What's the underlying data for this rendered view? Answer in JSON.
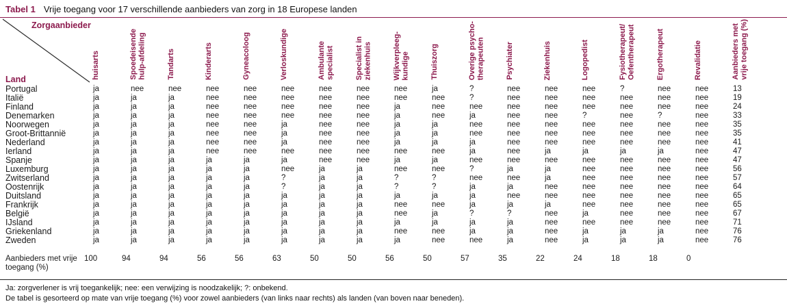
{
  "title": {
    "label": "Tabel 1",
    "text": "Vrije toegang voor 17 verschillende aanbieders van zorg in 18 Europese landen"
  },
  "corner": {
    "top_label": "Zorgaanbieder",
    "bottom_label": "Land"
  },
  "columns": [
    "huisarts",
    "Spoedeisende\nhulp-afdeling",
    "Tandarts",
    "Kinderarts",
    "Gyneacoloog",
    "Verloskundige",
    "Ambulante\nspecialist",
    "Specialist in\nziekenhuis",
    "Wijkverpleeg-\nkundige",
    "Thuiszorg",
    "Overige psycho-\ntherapeuten",
    "Psychiater",
    "Ziekenhuis",
    "Logopedist",
    "Fysiotherapeut/\nOefentherapeut",
    "Ergotherapeut",
    "Revalidatie",
    "Aanbieders met\nvrije toegang (%)"
  ],
  "rows": [
    {
      "country": "Portugal",
      "values": [
        "ja",
        "nee",
        "nee",
        "nee",
        "nee",
        "nee",
        "nee",
        "nee",
        "nee",
        "ja",
        "?",
        "nee",
        "nee",
        "nee",
        "?",
        "nee",
        "nee"
      ],
      "pct": "13"
    },
    {
      "country": "Italië",
      "values": [
        "ja",
        "ja",
        "ja",
        "nee",
        "nee",
        "nee",
        "nee",
        "nee",
        "nee",
        "nee",
        "?",
        "nee",
        "nee",
        "nee",
        "nee",
        "nee",
        "nee"
      ],
      "pct": "19"
    },
    {
      "country": "Finland",
      "values": [
        "ja",
        "ja",
        "ja",
        "nee",
        "nee",
        "nee",
        "nee",
        "nee",
        "ja",
        "nee",
        "nee",
        "nee",
        "nee",
        "nee",
        "nee",
        "nee",
        "nee"
      ],
      "pct": "24"
    },
    {
      "country": "Denemarken",
      "values": [
        "ja",
        "ja",
        "ja",
        "nee",
        "nee",
        "nee",
        "nee",
        "nee",
        "ja",
        "nee",
        "ja",
        "nee",
        "nee",
        "?",
        "nee",
        "?",
        "nee"
      ],
      "pct": "33"
    },
    {
      "country": "Noorwegen",
      "values": [
        "ja",
        "ja",
        "ja",
        "nee",
        "nee",
        "ja",
        "nee",
        "nee",
        "ja",
        "ja",
        "nee",
        "nee",
        "nee",
        "nee",
        "nee",
        "nee",
        "nee"
      ],
      "pct": "35"
    },
    {
      "country": "Groot-Brittannië",
      "values": [
        "ja",
        "ja",
        "ja",
        "nee",
        "nee",
        "ja",
        "nee",
        "nee",
        "ja",
        "ja",
        "nee",
        "nee",
        "nee",
        "nee",
        "nee",
        "nee",
        "nee"
      ],
      "pct": "35"
    },
    {
      "country": "Nederland",
      "values": [
        "ja",
        "ja",
        "ja",
        "nee",
        "nee",
        "ja",
        "nee",
        "nee",
        "ja",
        "ja",
        "ja",
        "nee",
        "nee",
        "nee",
        "nee",
        "nee",
        "nee"
      ],
      "pct": "41"
    },
    {
      "country": "Ierland",
      "values": [
        "ja",
        "ja",
        "ja",
        "nee",
        "nee",
        "nee",
        "nee",
        "nee",
        "nee",
        "nee",
        "ja",
        "nee",
        "ja",
        "ja",
        "ja",
        "ja",
        "nee"
      ],
      "pct": "47"
    },
    {
      "country": "Spanje",
      "values": [
        "ja",
        "ja",
        "ja",
        "ja",
        "ja",
        "ja",
        "nee",
        "nee",
        "ja",
        "ja",
        "nee",
        "nee",
        "nee",
        "nee",
        "nee",
        "nee",
        "nee"
      ],
      "pct": "47"
    },
    {
      "country": "Luxemburg",
      "values": [
        "ja",
        "ja",
        "ja",
        "ja",
        "ja",
        "nee",
        "ja",
        "ja",
        "nee",
        "nee",
        "?",
        "ja",
        "ja",
        "nee",
        "nee",
        "nee",
        "nee"
      ],
      "pct": "56"
    },
    {
      "country": "Zwitserland",
      "values": [
        "ja",
        "ja",
        "ja",
        "ja",
        "ja",
        "?",
        "ja",
        "ja",
        "?",
        "?",
        "nee",
        "nee",
        "ja",
        "nee",
        "nee",
        "nee",
        "nee"
      ],
      "pct": "57"
    },
    {
      "country": "Oostenrijk",
      "values": [
        "ja",
        "ja",
        "ja",
        "ja",
        "ja",
        "?",
        "ja",
        "ja",
        "?",
        "?",
        "ja",
        "ja",
        "nee",
        "nee",
        "nee",
        "nee",
        "nee"
      ],
      "pct": "64"
    },
    {
      "country": "Duitsland",
      "values": [
        "ja",
        "ja",
        "ja",
        "ja",
        "ja",
        "ja",
        "ja",
        "ja",
        "ja",
        "ja",
        "ja",
        "nee",
        "nee",
        "nee",
        "nee",
        "nee",
        "nee"
      ],
      "pct": "65"
    },
    {
      "country": "Frankrijk",
      "values": [
        "ja",
        "ja",
        "ja",
        "ja",
        "ja",
        "ja",
        "ja",
        "ja",
        "nee",
        "nee",
        "ja",
        "ja",
        "ja",
        "nee",
        "nee",
        "nee",
        "nee"
      ],
      "pct": "65"
    },
    {
      "country": "België",
      "values": [
        "ja",
        "ja",
        "ja",
        "ja",
        "ja",
        "ja",
        "ja",
        "ja",
        "nee",
        "ja",
        "?",
        "?",
        "nee",
        "ja",
        "nee",
        "nee",
        "nee"
      ],
      "pct": "67"
    },
    {
      "country": "IJsland",
      "values": [
        "ja",
        "ja",
        "ja",
        "ja",
        "ja",
        "ja",
        "ja",
        "ja",
        "ja",
        "ja",
        "ja",
        "ja",
        "nee",
        "nee",
        "nee",
        "nee",
        "nee"
      ],
      "pct": "71"
    },
    {
      "country": "Griekenland",
      "values": [
        "ja",
        "ja",
        "ja",
        "ja",
        "ja",
        "ja",
        "ja",
        "ja",
        "nee",
        "nee",
        "ja",
        "ja",
        "nee",
        "ja",
        "ja",
        "ja",
        "nee"
      ],
      "pct": "76"
    },
    {
      "country": "Zweden",
      "values": [
        "ja",
        "ja",
        "ja",
        "ja",
        "ja",
        "ja",
        "ja",
        "ja",
        "ja",
        "nee",
        "nee",
        "ja",
        "nee",
        "ja",
        "ja",
        "ja",
        "nee"
      ],
      "pct": "76"
    }
  ],
  "summary": {
    "label": "Aanbieders met vrije toegang (%)",
    "values": [
      "100",
      "94",
      "94",
      "56",
      "56",
      "63",
      "50",
      "50",
      "56",
      "50",
      "57",
      "35",
      "22",
      "24",
      "18",
      "18",
      "0"
    ],
    "pct": ""
  },
  "footnotes": [
    "Ja: zorgverlener is vrij toegankelijk; nee: een verwijzing is noodzakelijk; ?: onbekend.",
    "De tabel is gesorteerd op mate van vrije toegang (%) voor zowel aanbieders (van links naar rechts) als landen (van boven naar beneden)."
  ],
  "colors": {
    "accent": "#8C1A4D",
    "text": "#1A1A1A"
  }
}
